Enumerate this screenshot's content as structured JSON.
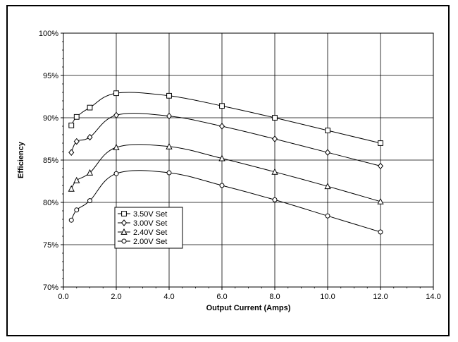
{
  "chart_data": {
    "type": "line",
    "title": "",
    "xlabel": "Output Current (Amps)",
    "ylabel": "Efficiency",
    "xlim": [
      0.0,
      14.0
    ],
    "ylim": [
      70,
      100
    ],
    "xticks": [
      0.0,
      2.0,
      4.0,
      6.0,
      8.0,
      10.0,
      12.0,
      14.0
    ],
    "xtick_labels": [
      "0.0",
      "2.0",
      "4.0",
      "6.0",
      "8.0",
      "10.0",
      "12.0",
      "14.0"
    ],
    "yticks": [
      70,
      75,
      80,
      85,
      90,
      95,
      100
    ],
    "ytick_labels": [
      "70%",
      "75%",
      "80%",
      "85%",
      "90%",
      "95%",
      "100%"
    ],
    "grid": true,
    "legend_position": "bottom-left inside plot",
    "line_color": "#000000",
    "series": [
      {
        "name": "3.50V Set",
        "marker": "square",
        "x": [
          0.3,
          0.5,
          1.0,
          2.0,
          4.0,
          6.0,
          8.0,
          10.0,
          12.0
        ],
        "y": [
          89.1,
          90.1,
          91.2,
          92.9,
          92.6,
          91.4,
          90.0,
          88.5,
          87.0
        ]
      },
      {
        "name": "3.00V Set",
        "marker": "diamond",
        "x": [
          0.3,
          0.5,
          1.0,
          2.0,
          4.0,
          6.0,
          8.0,
          10.0,
          12.0
        ],
        "y": [
          85.9,
          87.2,
          87.7,
          90.3,
          90.2,
          89.0,
          87.5,
          85.9,
          84.3
        ]
      },
      {
        "name": "2.40V Set",
        "marker": "triangle",
        "x": [
          0.3,
          0.5,
          1.0,
          2.0,
          4.0,
          6.0,
          8.0,
          10.0,
          12.0
        ],
        "y": [
          81.6,
          82.6,
          83.5,
          86.5,
          86.6,
          85.2,
          83.6,
          81.9,
          80.1
        ]
      },
      {
        "name": "2.00V Set",
        "marker": "circle",
        "x": [
          0.3,
          0.5,
          1.0,
          2.0,
          4.0,
          6.0,
          8.0,
          10.0,
          12.0
        ],
        "y": [
          77.9,
          79.1,
          80.2,
          83.4,
          83.5,
          82.0,
          80.3,
          78.4,
          76.5
        ]
      }
    ]
  }
}
